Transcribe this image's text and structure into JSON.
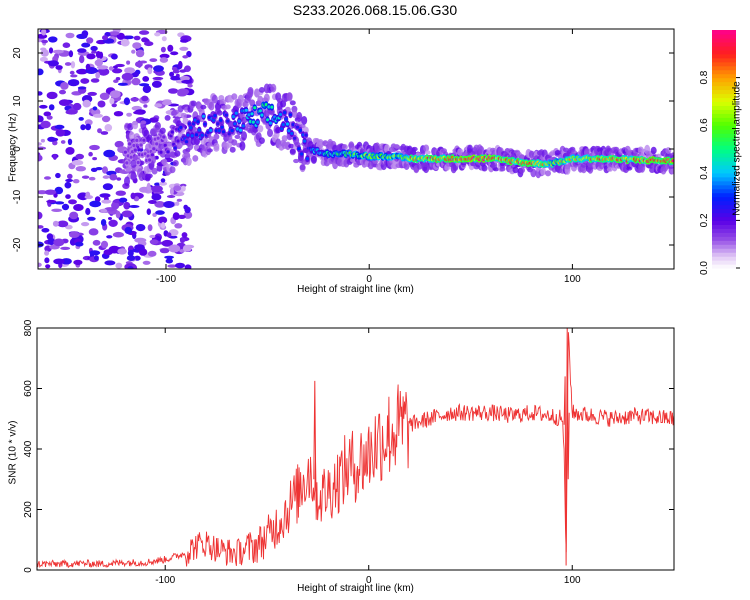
{
  "title": "S233.2026.068.15.06.G30",
  "colors": {
    "snr_line": "#ee3333",
    "axis": "#000000",
    "background": "#ffffff"
  },
  "chart_data": [
    {
      "type": "heatmap",
      "title": "",
      "xlabel": "Height of straight line (km)",
      "ylabel": "Frequency (Hz)",
      "xlim": [
        -163,
        150
      ],
      "ylim": [
        -25,
        25
      ],
      "x_ticks": [
        -100,
        0,
        100
      ],
      "x_tick_labels": [
        "-100",
        "0",
        "100"
      ],
      "y_ticks": [
        -20,
        -10,
        0,
        10,
        20
      ],
      "y_tick_labels": [
        "-20",
        "-10",
        "0",
        "10",
        "20"
      ],
      "colorbar": {
        "label": "Normalized spectral amplitude",
        "range": [
          0,
          1
        ],
        "ticks": [
          0.0,
          0.2,
          0.4,
          0.6,
          0.8
        ],
        "tick_labels": [
          "0.0",
          "0.2",
          "0.4",
          "0.6",
          "0.8"
        ],
        "colormap": "rainbow (white-purple-blue-cyan-green-yellow-red-magenta)"
      },
      "ridge": {
        "x": [
          -120,
          -100,
          -90,
          -80,
          -70,
          -60,
          -50,
          -40,
          -35,
          -30,
          -20,
          -10,
          0,
          10,
          20,
          40,
          60,
          80,
          90,
          100,
          110,
          150
        ],
        "frequency_hz": [
          -1,
          1,
          3,
          5,
          5,
          6,
          7,
          6,
          2,
          0,
          -1,
          -1,
          -1.5,
          -1.5,
          -2,
          -2,
          -2,
          -3,
          -3,
          -2,
          -2,
          -2.5
        ],
        "peak_amplitude": [
          0.15,
          0.2,
          0.3,
          0.35,
          0.3,
          0.45,
          0.5,
          0.35,
          0.3,
          0.35,
          0.5,
          0.55,
          0.7,
          0.6,
          0.8,
          0.95,
          0.95,
          0.85,
          0.7,
          0.8,
          0.85,
          0.95
        ]
      }
    },
    {
      "type": "line",
      "title": "",
      "xlabel": "Height of straight line (km)",
      "ylabel": "SNR (10 * v/v)",
      "xlim": [
        -163,
        150
      ],
      "ylim": [
        0,
        800
      ],
      "x_ticks": [
        -100,
        0,
        100
      ],
      "x_tick_labels": [
        "-100",
        "0",
        "100"
      ],
      "y_ticks": [
        0,
        200,
        400,
        600,
        800
      ],
      "y_tick_labels": [
        "0",
        "200",
        "400",
        "600",
        "800"
      ],
      "series": [
        {
          "x": [
            -163,
            -150,
            -140,
            -130,
            -120,
            -110,
            -100,
            -90,
            -85,
            -80,
            -75,
            -70,
            -65,
            -60,
            -55,
            -50,
            -45,
            -40,
            -35,
            -32,
            -30,
            -28,
            -25,
            -20,
            -15,
            -10,
            -5,
            0,
            5,
            10,
            15,
            20,
            30,
            40,
            50,
            60,
            70,
            80,
            90,
            95,
            96,
            97,
            98,
            100,
            110,
            120,
            130,
            140,
            150
          ],
          "y": [
            20,
            20,
            22,
            20,
            25,
            25,
            35,
            55,
            80,
            90,
            70,
            60,
            55,
            70,
            80,
            110,
            150,
            200,
            250,
            300,
            330,
            320,
            240,
            260,
            300,
            340,
            350,
            380,
            430,
            450,
            470,
            480,
            500,
            520,
            520,
            520,
            510,
            520,
            510,
            500,
            400,
            20,
            800,
            520,
            510,
            500,
            510,
            505,
            500
          ]
        }
      ]
    }
  ]
}
